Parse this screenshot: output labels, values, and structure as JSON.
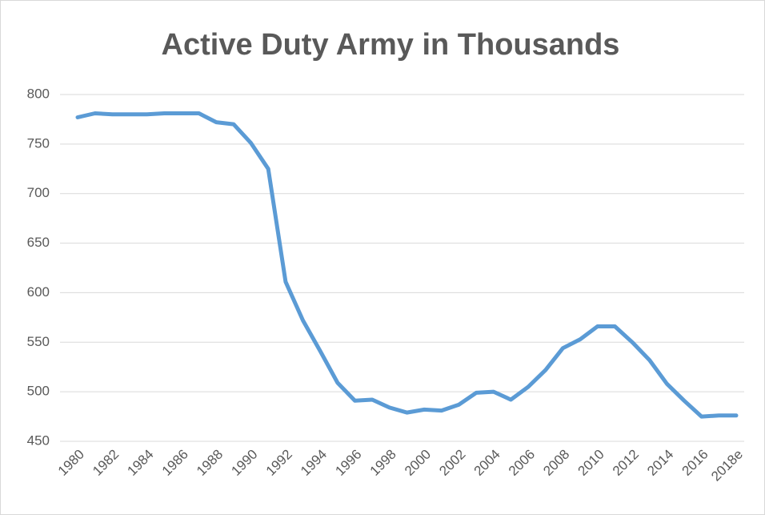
{
  "chart_data": {
    "type": "line",
    "title": "Active Duty Army in Thousands",
    "categories": [
      "1980",
      null,
      "1982",
      null,
      "1984",
      null,
      "1986",
      null,
      "1988",
      null,
      "1990",
      null,
      "1992",
      null,
      "1994",
      null,
      "1996",
      null,
      "1998",
      null,
      "2000",
      null,
      "2002",
      null,
      "2004",
      null,
      "2006",
      null,
      "2008",
      null,
      "2010",
      null,
      "2012",
      null,
      "2014",
      null,
      "2016",
      null,
      "2018e"
    ],
    "values": [
      777,
      781,
      780,
      780,
      780,
      781,
      781,
      781,
      772,
      770,
      751,
      725,
      611,
      572,
      541,
      509,
      491,
      492,
      484,
      479,
      482,
      481,
      487,
      499,
      500,
      492,
      505,
      522,
      544,
      553,
      566,
      566,
      550,
      532,
      508,
      491,
      475,
      476,
      476
    ],
    "color": "#5b9bd5",
    "ylim": [
      450,
      800
    ],
    "yticks": [
      450,
      500,
      550,
      600,
      650,
      700,
      750,
      800
    ],
    "grid": true
  }
}
